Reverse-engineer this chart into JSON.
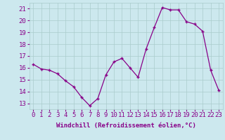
{
  "x": [
    0,
    1,
    2,
    3,
    4,
    5,
    6,
    7,
    8,
    9,
    10,
    11,
    12,
    13,
    14,
    15,
    16,
    17,
    18,
    19,
    20,
    21,
    22,
    23
  ],
  "y": [
    16.3,
    15.9,
    15.8,
    15.5,
    14.9,
    14.4,
    13.5,
    12.8,
    13.4,
    15.4,
    16.5,
    16.8,
    16.0,
    15.2,
    17.6,
    19.4,
    21.1,
    20.9,
    20.9,
    19.9,
    19.7,
    19.1,
    15.8,
    14.1
  ],
  "xlabel": "Windchill (Refroidissement éolien,°C)",
  "ylabel_ticks": [
    13,
    14,
    15,
    16,
    17,
    18,
    19,
    20,
    21
  ],
  "ylim": [
    12.5,
    21.5
  ],
  "xlim": [
    -0.5,
    23.5
  ],
  "line_color": "#880088",
  "marker_color": "#880088",
  "bg_color": "#cce8ee",
  "grid_color": "#aacccc",
  "tick_label_color": "#880088",
  "xlabel_color": "#880088",
  "axis_label_fontsize": 6.5,
  "tick_fontsize": 6.5
}
